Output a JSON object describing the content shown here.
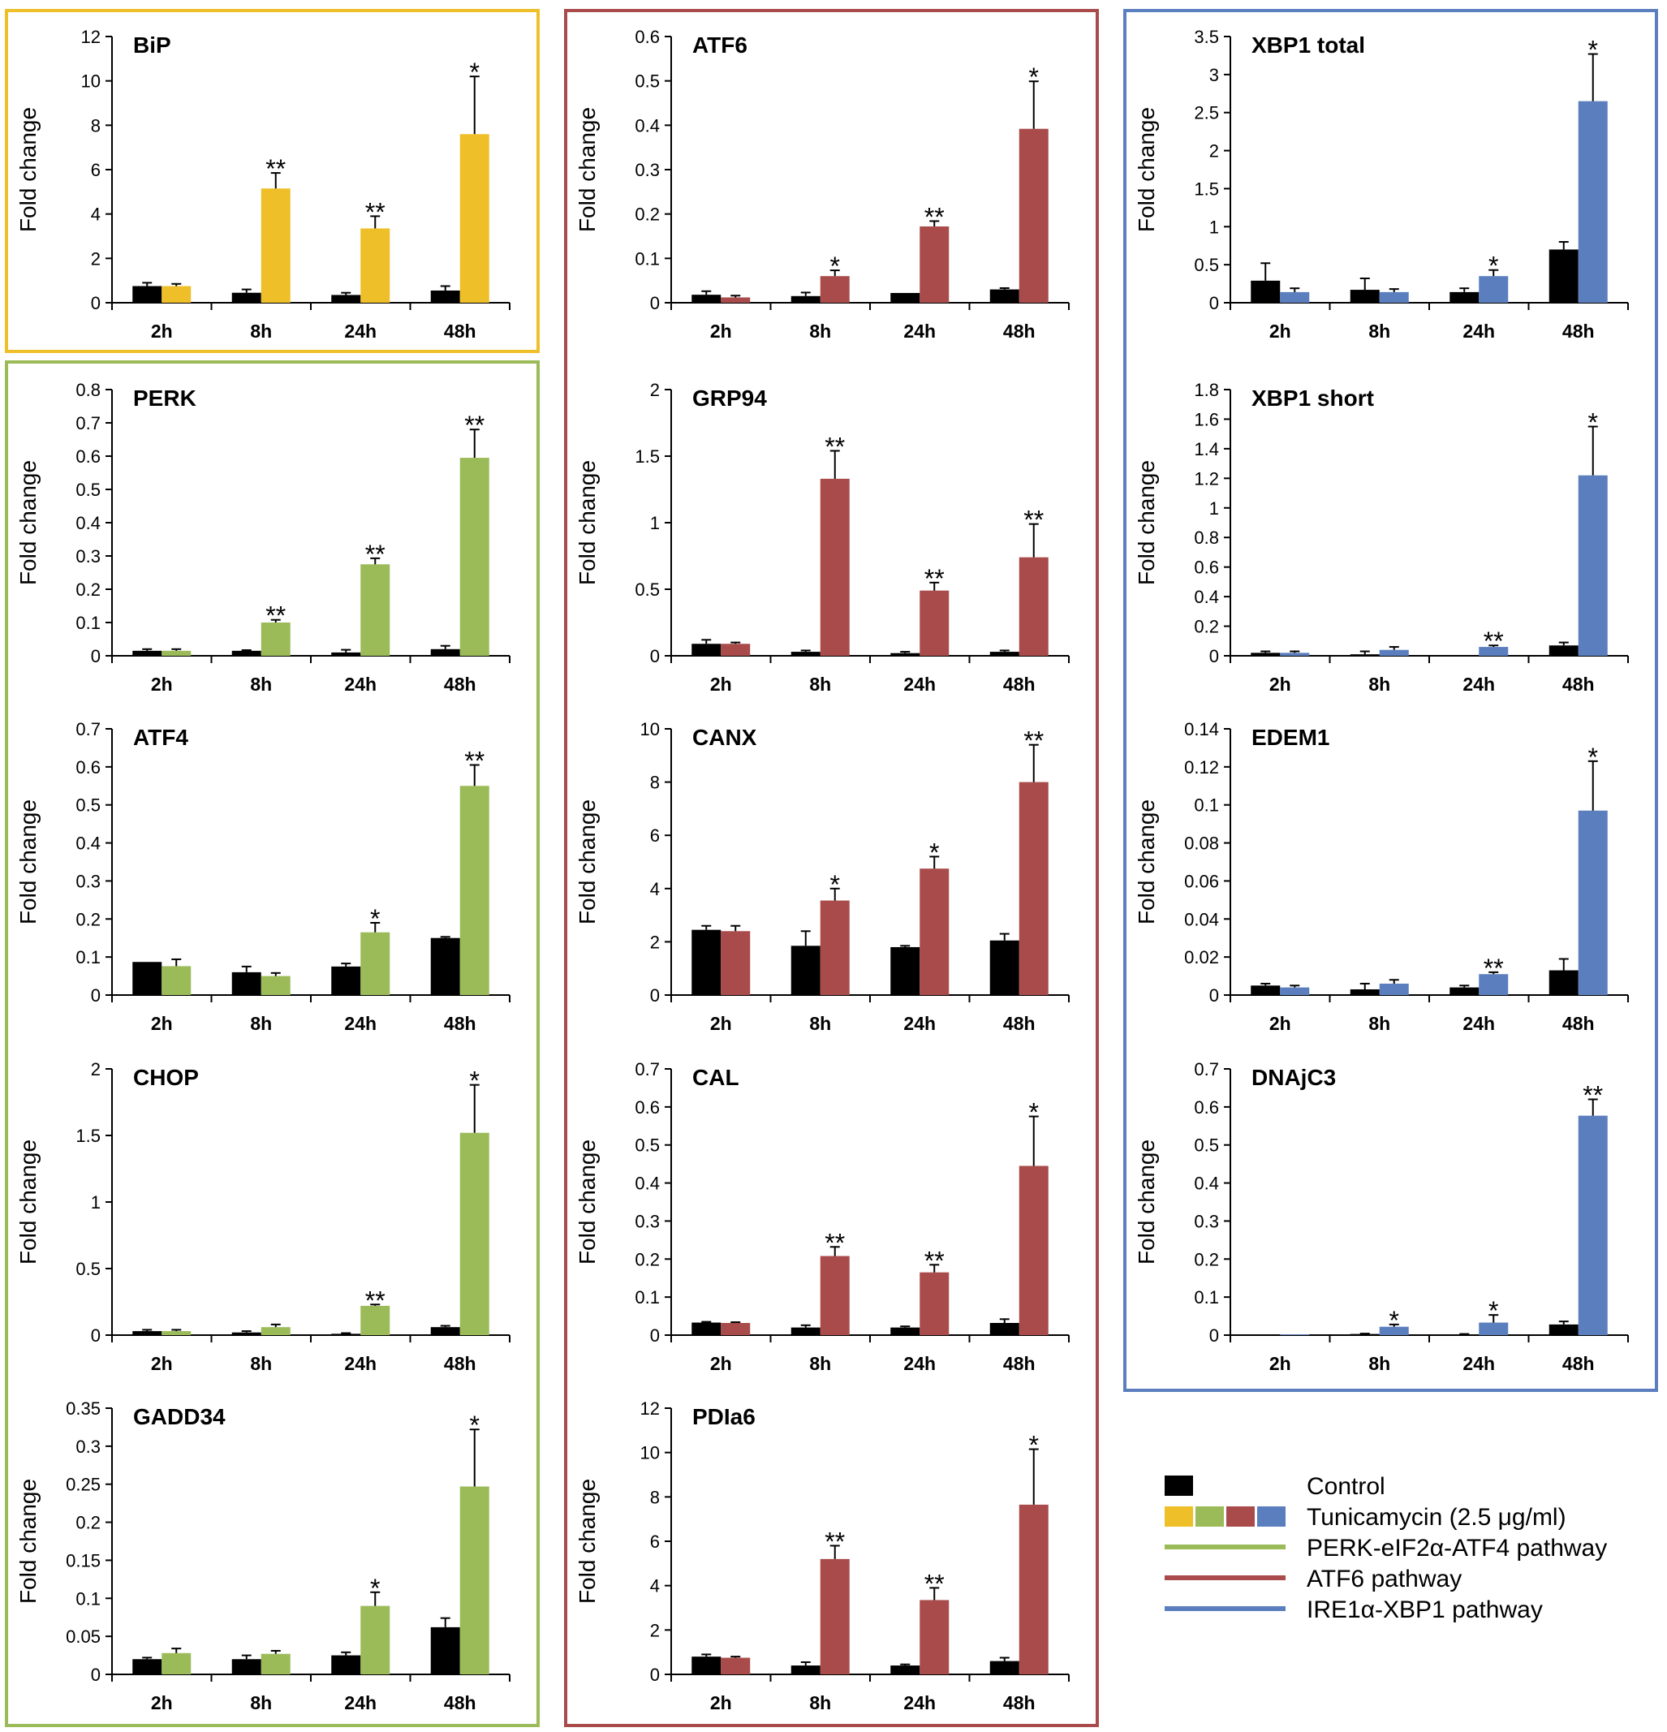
{
  "figure": {
    "categories": [
      "2h",
      "8h",
      "24h",
      "48h"
    ],
    "ylabel": "Fold change",
    "colors": {
      "control": "#000000",
      "yellow": "#EFBF29",
      "green": "#9BBB59",
      "red": "#A94B4B",
      "blue": "#5B7FBE",
      "box_yellow": "#EFBF29",
      "box_green": "#9BBB59",
      "box_red": "#A94B4B",
      "box_blue": "#5B7FBE"
    },
    "legend": {
      "control": "Control",
      "tunicamycin": "Tunicamycin (2.5 μg/ml)",
      "perk_pathway": "PERK-eIF2α-ATF4 pathway",
      "atf6_pathway": "ATF6 pathway",
      "ire1_pathway": "IRE1α-XBP1 pathway"
    }
  },
  "chart_data": [
    {
      "type": "bar",
      "title": "BiP",
      "color": "yellow",
      "xlabel": "",
      "ylabel": "Fold change",
      "categories": [
        "2h",
        "8h",
        "24h",
        "48h"
      ],
      "ylim": [
        0,
        12
      ],
      "yticks": [
        "0",
        "2",
        "4",
        "6",
        "8",
        "10",
        "12"
      ],
      "series": [
        {
          "name": "Control",
          "values": [
            0.75,
            0.45,
            0.35,
            0.55
          ],
          "errors": [
            0.15,
            0.15,
            0.1,
            0.2
          ]
        },
        {
          "name": "Tunicamycin (2.5 μg/ml)",
          "values": [
            0.75,
            5.15,
            3.35,
            7.6
          ],
          "errors": [
            0.1,
            0.7,
            0.55,
            2.6
          ]
        }
      ],
      "annotations": [
        "",
        "**",
        "**",
        "*"
      ]
    },
    {
      "type": "bar",
      "title": "ATF6",
      "color": "red",
      "xlabel": "",
      "ylabel": "Fold change",
      "categories": [
        "2h",
        "8h",
        "24h",
        "48h"
      ],
      "ylim": [
        0,
        0.6
      ],
      "yticks": [
        "0",
        "0.1",
        "0.2",
        "0.3",
        "0.4",
        "0.5",
        "0.6"
      ],
      "series": [
        {
          "name": "Control",
          "values": [
            0.018,
            0.015,
            0.022,
            0.03
          ],
          "errors": [
            0.008,
            0.008,
            0.0,
            0.003
          ]
        },
        {
          "name": "Tunicamycin (2.5 μg/ml)",
          "values": [
            0.012,
            0.06,
            0.172,
            0.392
          ],
          "errors": [
            0.004,
            0.013,
            0.012,
            0.107
          ]
        }
      ],
      "annotations": [
        "",
        "*",
        "**",
        "*"
      ]
    },
    {
      "type": "bar",
      "title": "XBP1 total",
      "color": "blue",
      "xlabel": "",
      "ylabel": "Fold change",
      "categories": [
        "2h",
        "8h",
        "24h",
        "48h"
      ],
      "ylim": [
        0,
        3.5
      ],
      "yticks": [
        "0",
        "0.5",
        "1",
        "1.5",
        "2",
        "2.5",
        "3",
        "3.5"
      ],
      "series": [
        {
          "name": "Control",
          "values": [
            0.29,
            0.17,
            0.14,
            0.7
          ],
          "errors": [
            0.23,
            0.15,
            0.05,
            0.1
          ]
        },
        {
          "name": "Tunicamycin (2.5 μg/ml)",
          "values": [
            0.14,
            0.14,
            0.35,
            2.65
          ],
          "errors": [
            0.05,
            0.04,
            0.08,
            0.62
          ]
        }
      ],
      "annotations": [
        "",
        "",
        "*",
        "*"
      ]
    },
    {
      "type": "bar",
      "title": "PERK",
      "color": "green",
      "xlabel": "",
      "ylabel": "Fold change",
      "categories": [
        "2h",
        "8h",
        "24h",
        "48h"
      ],
      "ylim": [
        0,
        0.8
      ],
      "yticks": [
        "0",
        "0.1",
        "0.2",
        "0.3",
        "0.4",
        "0.5",
        "0.6",
        "0.7",
        "0.8"
      ],
      "series": [
        {
          "name": "Control",
          "values": [
            0.015,
            0.015,
            0.01,
            0.02
          ],
          "errors": [
            0.005,
            0.002,
            0.008,
            0.01
          ]
        },
        {
          "name": "Tunicamycin (2.5 μg/ml)",
          "values": [
            0.015,
            0.1,
            0.275,
            0.595
          ],
          "errors": [
            0.005,
            0.008,
            0.018,
            0.085
          ]
        }
      ],
      "annotations": [
        "",
        "**",
        "**",
        "**"
      ]
    },
    {
      "type": "bar",
      "title": "GRP94",
      "color": "red",
      "xlabel": "",
      "ylabel": "Fold change",
      "categories": [
        "2h",
        "8h",
        "24h",
        "48h"
      ],
      "ylim": [
        0,
        2
      ],
      "yticks": [
        "0",
        "0.5",
        "1",
        "1.5",
        "2"
      ],
      "series": [
        {
          "name": "Control",
          "values": [
            0.09,
            0.03,
            0.02,
            0.03
          ],
          "errors": [
            0.03,
            0.01,
            0.01,
            0.01
          ]
        },
        {
          "name": "Tunicamycin (2.5 μg/ml)",
          "values": [
            0.09,
            1.33,
            0.49,
            0.74
          ],
          "errors": [
            0.01,
            0.21,
            0.06,
            0.25
          ]
        }
      ],
      "annotations": [
        "",
        "**",
        "**",
        "**"
      ]
    },
    {
      "type": "bar",
      "title": "XBP1 short",
      "color": "blue",
      "xlabel": "",
      "ylabel": "Fold change",
      "categories": [
        "2h",
        "8h",
        "24h",
        "48h"
      ],
      "ylim": [
        0,
        1.8
      ],
      "yticks": [
        "0",
        "0.2",
        "0.4",
        "0.6",
        "0.8",
        "1",
        "1.2",
        "1.4",
        "1.6",
        "1.8"
      ],
      "series": [
        {
          "name": "Control",
          "values": [
            0.02,
            0.01,
            0.0,
            0.07
          ],
          "errors": [
            0.01,
            0.02,
            0.0,
            0.02
          ]
        },
        {
          "name": "Tunicamycin (2.5 μg/ml)",
          "values": [
            0.02,
            0.04,
            0.06,
            1.22
          ],
          "errors": [
            0.01,
            0.02,
            0.01,
            0.33
          ]
        }
      ],
      "annotations": [
        "",
        "",
        "**",
        "*"
      ]
    },
    {
      "type": "bar",
      "title": "ATF4",
      "color": "green",
      "xlabel": "",
      "ylabel": "Fold change",
      "categories": [
        "2h",
        "8h",
        "24h",
        "48h"
      ],
      "ylim": [
        0,
        0.7
      ],
      "yticks": [
        "0",
        "0.1",
        "0.2",
        "0.3",
        "0.4",
        "0.5",
        "0.6",
        "0.7"
      ],
      "series": [
        {
          "name": "Control",
          "values": [
            0.087,
            0.06,
            0.075,
            0.15
          ],
          "errors": [
            0.0,
            0.015,
            0.008,
            0.003
          ]
        },
        {
          "name": "Tunicamycin (2.5 μg/ml)",
          "values": [
            0.076,
            0.05,
            0.165,
            0.55
          ],
          "errors": [
            0.018,
            0.008,
            0.025,
            0.055
          ]
        }
      ],
      "annotations": [
        "",
        "",
        "*",
        "**"
      ]
    },
    {
      "type": "bar",
      "title": "CANX",
      "color": "red",
      "xlabel": "",
      "ylabel": "Fold change",
      "categories": [
        "2h",
        "8h",
        "24h",
        "48h"
      ],
      "ylim": [
        0,
        10
      ],
      "yticks": [
        "0",
        "2",
        "4",
        "6",
        "8",
        "10"
      ],
      "series": [
        {
          "name": "Control",
          "values": [
            2.45,
            1.85,
            1.8,
            2.05
          ],
          "errors": [
            0.15,
            0.55,
            0.05,
            0.25
          ]
        },
        {
          "name": "Tunicamycin (2.5 μg/ml)",
          "values": [
            2.4,
            3.55,
            4.75,
            8.0
          ],
          "errors": [
            0.2,
            0.45,
            0.45,
            1.4
          ]
        }
      ],
      "annotations": [
        "",
        "*",
        "*",
        "**"
      ]
    },
    {
      "type": "bar",
      "title": "EDEM1",
      "color": "blue",
      "xlabel": "",
      "ylabel": "Fold change",
      "categories": [
        "2h",
        "8h",
        "24h",
        "48h"
      ],
      "ylim": [
        0,
        0.14
      ],
      "yticks": [
        "0",
        "0.02",
        "0.04",
        "0.06",
        "0.08",
        "0.1",
        "0.12",
        "0.14"
      ],
      "series": [
        {
          "name": "Control",
          "values": [
            0.005,
            0.003,
            0.004,
            0.013
          ],
          "errors": [
            0.001,
            0.003,
            0.001,
            0.006
          ]
        },
        {
          "name": "Tunicamycin (2.5 μg/ml)",
          "values": [
            0.004,
            0.006,
            0.011,
            0.097
          ],
          "errors": [
            0.001,
            0.002,
            0.001,
            0.026
          ]
        }
      ],
      "annotations": [
        "",
        "",
        "**",
        "*"
      ]
    },
    {
      "type": "bar",
      "title": "CHOP",
      "color": "green",
      "xlabel": "",
      "ylabel": "Fold change",
      "categories": [
        "2h",
        "8h",
        "24h",
        "48h"
      ],
      "ylim": [
        0,
        2
      ],
      "yticks": [
        "0",
        "0.5",
        "1",
        "1.5",
        "2"
      ],
      "series": [
        {
          "name": "Control",
          "values": [
            0.03,
            0.02,
            0.01,
            0.06
          ],
          "errors": [
            0.01,
            0.01,
            0.005,
            0.01
          ]
        },
        {
          "name": "Tunicamycin (2.5 μg/ml)",
          "values": [
            0.03,
            0.06,
            0.22,
            1.52
          ],
          "errors": [
            0.01,
            0.02,
            0.01,
            0.36
          ]
        }
      ],
      "annotations": [
        "",
        "",
        "**",
        "*"
      ]
    },
    {
      "type": "bar",
      "title": "CAL",
      "color": "red",
      "xlabel": "",
      "ylabel": "Fold change",
      "categories": [
        "2h",
        "8h",
        "24h",
        "48h"
      ],
      "ylim": [
        0,
        0.7
      ],
      "yticks": [
        "0",
        "0.1",
        "0.2",
        "0.3",
        "0.4",
        "0.5",
        "0.6",
        "0.7"
      ],
      "series": [
        {
          "name": "Control",
          "values": [
            0.033,
            0.02,
            0.02,
            0.032
          ],
          "errors": [
            0.002,
            0.006,
            0.003,
            0.01
          ]
        },
        {
          "name": "Tunicamycin (2.5 μg/ml)",
          "values": [
            0.032,
            0.208,
            0.165,
            0.445
          ],
          "errors": [
            0.002,
            0.024,
            0.02,
            0.13
          ]
        }
      ],
      "annotations": [
        "",
        "**",
        "**",
        "*"
      ]
    },
    {
      "type": "bar",
      "title": "DNAjC3",
      "color": "blue",
      "xlabel": "",
      "ylabel": "Fold change",
      "categories": [
        "2h",
        "8h",
        "24h",
        "48h"
      ],
      "ylim": [
        0,
        0.7
      ],
      "yticks": [
        "0",
        "0.1",
        "0.2",
        "0.3",
        "0.4",
        "0.5",
        "0.6",
        "0.7"
      ],
      "series": [
        {
          "name": "Control",
          "values": [
            0.002,
            0.003,
            0.002,
            0.028
          ],
          "errors": [
            0.0,
            0.001,
            0.001,
            0.008
          ]
        },
        {
          "name": "Tunicamycin (2.5 μg/ml)",
          "values": [
            0.002,
            0.022,
            0.033,
            0.577
          ],
          "errors": [
            0.0,
            0.006,
            0.02,
            0.043
          ]
        }
      ],
      "annotations": [
        "",
        "*",
        "*",
        "**"
      ]
    },
    {
      "type": "bar",
      "title": "GADD34",
      "color": "green",
      "xlabel": "",
      "ylabel": "Fold change",
      "categories": [
        "2h",
        "8h",
        "24h",
        "48h"
      ],
      "ylim": [
        0,
        0.35
      ],
      "yticks": [
        "0",
        "0.05",
        "0.1",
        "0.15",
        "0.2",
        "0.25",
        "0.3",
        "0.35"
      ],
      "series": [
        {
          "name": "Control",
          "values": [
            0.02,
            0.02,
            0.025,
            0.062
          ],
          "errors": [
            0.002,
            0.005,
            0.004,
            0.012
          ]
        },
        {
          "name": "Tunicamycin (2.5 μg/ml)",
          "values": [
            0.028,
            0.027,
            0.09,
            0.247
          ],
          "errors": [
            0.006,
            0.004,
            0.018,
            0.075
          ]
        }
      ],
      "annotations": [
        "",
        "",
        "*",
        "*"
      ]
    },
    {
      "type": "bar",
      "title": "PDIa6",
      "color": "red",
      "xlabel": "",
      "ylabel": "Fold change",
      "categories": [
        "2h",
        "8h",
        "24h",
        "48h"
      ],
      "ylim": [
        0,
        12
      ],
      "yticks": [
        "0",
        "2",
        "4",
        "6",
        "8",
        "10",
        "12"
      ],
      "series": [
        {
          "name": "Control",
          "values": [
            0.8,
            0.4,
            0.4,
            0.6
          ],
          "errors": [
            0.1,
            0.15,
            0.05,
            0.15
          ]
        },
        {
          "name": "Tunicamycin (2.5 μg/ml)",
          "values": [
            0.75,
            5.2,
            3.35,
            7.65
          ],
          "errors": [
            0.05,
            0.6,
            0.55,
            2.5
          ]
        }
      ],
      "annotations": [
        "",
        "**",
        "**",
        "*"
      ]
    }
  ]
}
